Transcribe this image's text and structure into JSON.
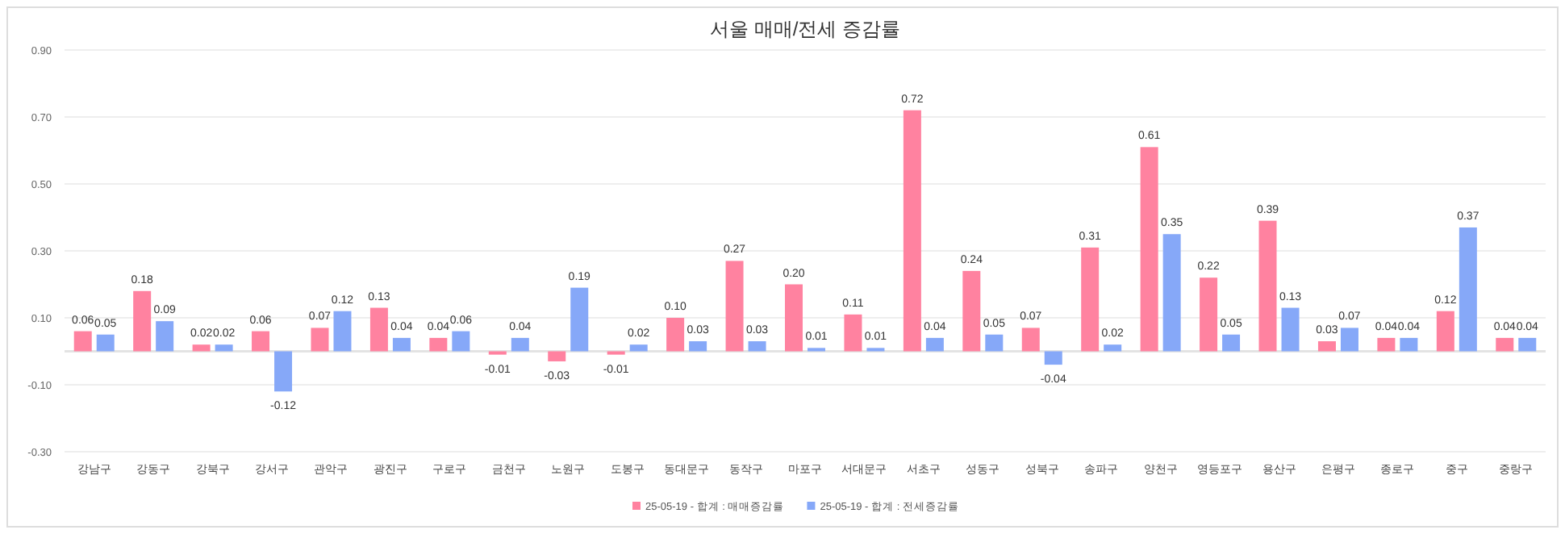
{
  "chart_data": {
    "type": "bar",
    "title": "서울 매매/전세 증감률",
    "categories": [
      "강남구",
      "강동구",
      "강북구",
      "강서구",
      "관악구",
      "광진구",
      "구로구",
      "금천구",
      "노원구",
      "도봉구",
      "동대문구",
      "동작구",
      "마포구",
      "서대문구",
      "서초구",
      "성동구",
      "성북구",
      "송파구",
      "양천구",
      "영등포구",
      "용산구",
      "은평구",
      "종로구",
      "중구",
      "중랑구"
    ],
    "series": [
      {
        "name": "25-05-19 - 합계 : 매매증감률",
        "color": "#ff82a0",
        "values": [
          0.06,
          0.18,
          0.02,
          0.06,
          0.07,
          0.13,
          0.04,
          -0.01,
          -0.03,
          -0.01,
          0.1,
          0.27,
          0.2,
          0.11,
          0.72,
          0.24,
          0.07,
          0.31,
          0.61,
          0.22,
          0.39,
          0.03,
          0.04,
          0.12,
          0.04
        ],
        "value_labels": [
          "0.06",
          "0.18",
          "0.02",
          "0.06",
          "0.07",
          "0.13",
          "0.04",
          "-0.01",
          "-0.03",
          "-0.01",
          "0.10",
          "0.27",
          "0.20",
          "0.11",
          "0.72",
          "0.24",
          "0.07",
          "0.31",
          "0.61",
          "0.22",
          "0.39",
          "0.03",
          "0.04",
          "0.12",
          "0.04"
        ]
      },
      {
        "name": "25-05-19 - 합계 : 전세증감률",
        "color": "#86a8f8",
        "values": [
          0.05,
          0.09,
          0.02,
          -0.12,
          0.12,
          0.04,
          0.06,
          0.04,
          0.19,
          0.02,
          0.03,
          0.03,
          0.01,
          0.01,
          0.04,
          0.05,
          -0.04,
          0.02,
          0.35,
          0.05,
          0.13,
          0.07,
          0.04,
          0.37,
          0.04
        ],
        "value_labels": [
          "0.05",
          "0.09",
          "0.02",
          "-0.12",
          "0.12",
          "0.04",
          "0.06",
          "0.04",
          "0.19",
          "0.02",
          "0.03",
          "0.03",
          "0.01",
          "0.01",
          "0.04",
          "0.05",
          "-0.04",
          "0.02",
          "0.35",
          "0.05",
          "0.13",
          "0.07",
          "0.04",
          "0.37",
          "0.04"
        ]
      }
    ],
    "ylim": [
      -0.3,
      0.9
    ],
    "yticks": [
      {
        "value": -0.3,
        "label": "-0.30"
      },
      {
        "value": -0.1,
        "label": "-0.10"
      },
      {
        "value": 0.1,
        "label": "0.10"
      },
      {
        "value": 0.3,
        "label": "0.30"
      },
      {
        "value": 0.5,
        "label": "0.50"
      },
      {
        "value": 0.7,
        "label": "0.70"
      },
      {
        "value": 0.9,
        "label": "0.90"
      }
    ],
    "grid": "y",
    "legend": "bottom"
  }
}
